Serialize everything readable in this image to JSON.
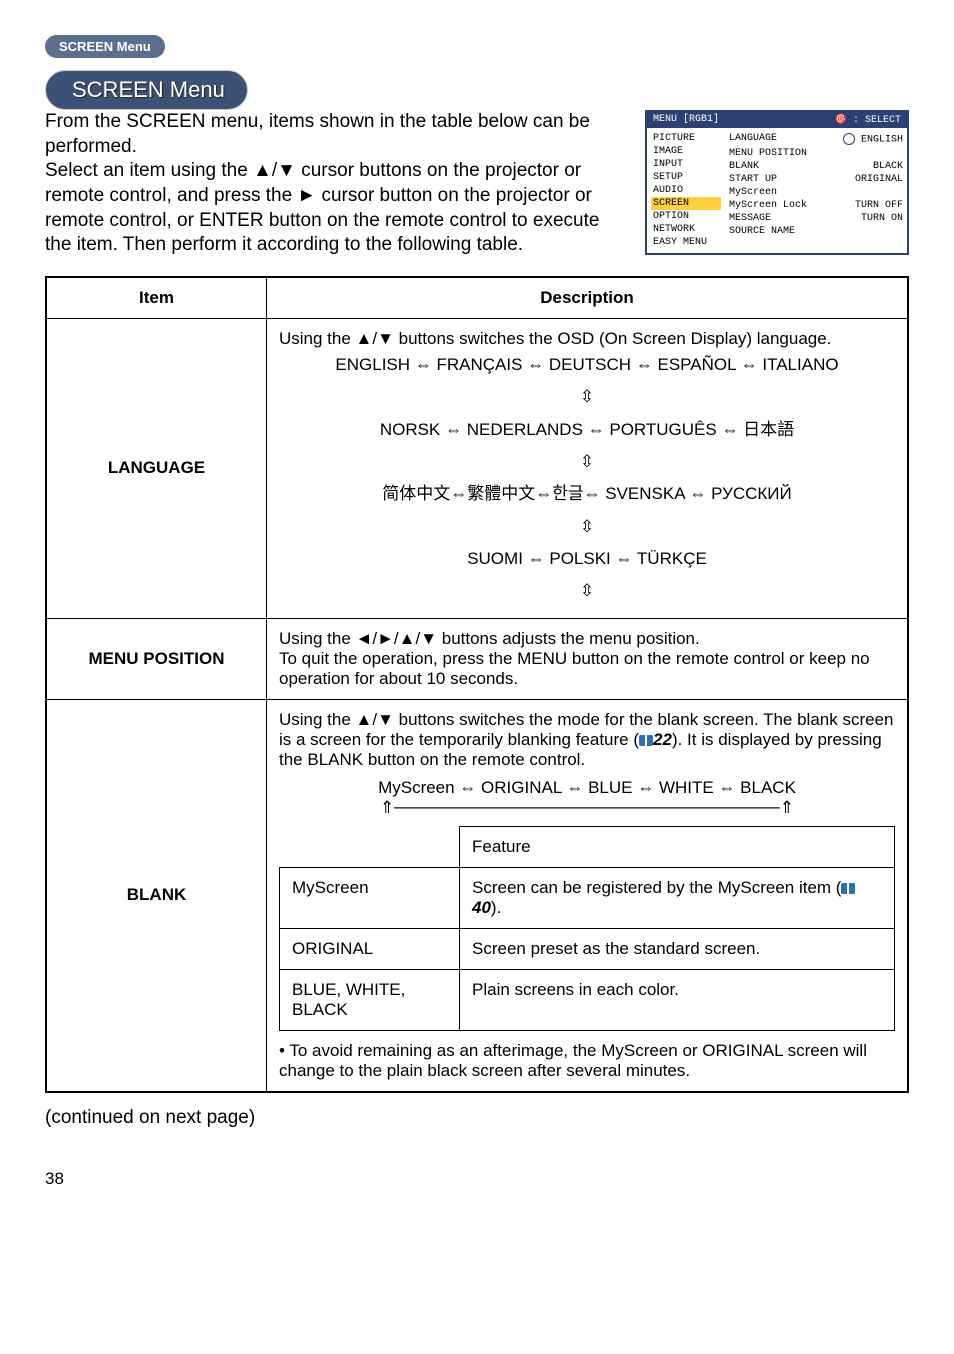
{
  "header": {
    "pill_bg_label": "SCREEN Menu",
    "pill_title": "SCREEN Menu"
  },
  "intro": "From the SCREEN menu, items shown in the table below can be performed.\nSelect an item using the ▲/▼ cursor buttons on the projector or remote control, and press the ► cursor button on the projector or remote control, or ENTER button on the remote control to execute the item. Then perform it according to the following table.",
  "osd": {
    "title_left": "MENU [RGB1]",
    "title_right": ": SELECT",
    "left_items": [
      "PICTURE",
      "IMAGE",
      "INPUT",
      "SETUP",
      "AUDIO",
      "SCREEN",
      "OPTION",
      "NETWORK",
      "EASY MENU"
    ],
    "highlight_index": 5,
    "right_rows": [
      {
        "l": "LANGUAGE",
        "r": "ENGLISH",
        "icon": true
      },
      {
        "l": "MENU POSITION",
        "r": ""
      },
      {
        "l": "BLANK",
        "r": "BLACK"
      },
      {
        "l": "START UP",
        "r": "ORIGINAL"
      },
      {
        "l": "MyScreen",
        "r": ""
      },
      {
        "l": "MyScreen Lock",
        "r": "TURN OFF"
      },
      {
        "l": "MESSAGE",
        "r": "TURN ON"
      },
      {
        "l": "SOURCE NAME",
        "r": ""
      }
    ]
  },
  "table": {
    "header_item": "Item",
    "header_desc": "Description",
    "language": {
      "label": "LANGUAGE",
      "line1": "Using the ▲/▼ buttons switches the OSD (On Screen Display) language.",
      "chain1": "ENGLISH ⇔ FRANÇAIS ⇔ DEUTSCH ⇔ ESPAÑOL ⇔ ITALIANO",
      "chain2": "NORSK ⇔ NEDERLANDS ⇔ PORTUGUÊS ⇔ 日本語",
      "chain3": "简体中文⇔繁體中文⇔한글⇔ SVENSKA ⇔ РУССКИЙ",
      "chain4": "SUOMI ⇔ POLSKI ⇔ TÜRKÇE"
    },
    "menu_position": {
      "label": "MENU POSITION",
      "text": "Using the ◄/►/▲/▼ buttons adjusts the menu position.\nTo quit the operation, press the MENU button on the remote control or keep no operation for about 10 seconds."
    },
    "blank": {
      "label": "BLANK",
      "p1a": "Using the ▲/▼ buttons switches the mode for the blank screen. The blank screen is a screen for the temporarily blanking feature (",
      "p1ref": "22",
      "p1b": "). It is displayed by pressing the BLANK button on the remote control.",
      "chain": "MyScreen ⇔ ORIGINAL ⇔ BLUE ⇔ WHITE ⇔ BLACK",
      "inner_header": "Feature",
      "rows": [
        {
          "name": "MyScreen",
          "desc_a": "Screen can be registered by the MyScreen item (",
          "ref": "40",
          "desc_b": ")."
        },
        {
          "name": "ORIGINAL",
          "desc": "Screen preset as the standard screen."
        },
        {
          "name": "BLUE, WHITE, BLACK",
          "desc": "Plain screens in each color."
        }
      ],
      "note": "• To avoid remaining as an afterimage, the MyScreen or ORIGINAL screen will change to the plain black screen after several minutes."
    }
  },
  "continued": "(continued on next page)",
  "page_number": "38"
}
